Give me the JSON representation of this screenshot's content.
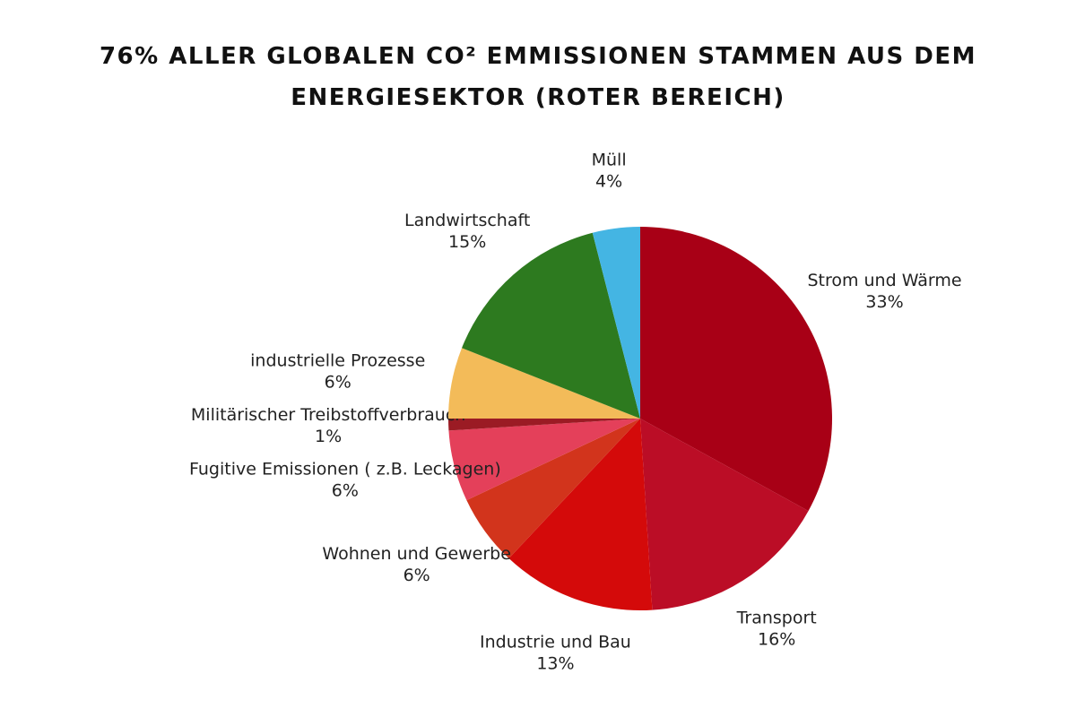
{
  "chart_data": {
    "type": "pie",
    "title": "76% ALLER GLOBALEN CO² EMMISSIONEN STAMMEN AUS DEM ENERGIESEKTOR (ROTER BEREICH)",
    "categories": [
      "Strom und Wärme",
      "Transport",
      "Industrie und Bau",
      "Wohnen und Gewerbe",
      "Fugitive Emissionen ( z.B. Leckagen)",
      "Militärischer Treibstoffverbrauch",
      "industrielle Prozesse",
      "Landwirtschaft",
      "Müll"
    ],
    "values": [
      33,
      16,
      13,
      6,
      6,
      1,
      6,
      15,
      4
    ],
    "value_labels": [
      "33%",
      "16%",
      "13%",
      "6%",
      "6%",
      "1%",
      "6%",
      "15%",
      "4%"
    ],
    "colors": [
      "#a80016",
      "#bb0d26",
      "#d40a0a",
      "#d2341c",
      "#e4405a",
      "#9b1b24",
      "#f3bb59",
      "#2d7a1f",
      "#44b5e3"
    ]
  }
}
